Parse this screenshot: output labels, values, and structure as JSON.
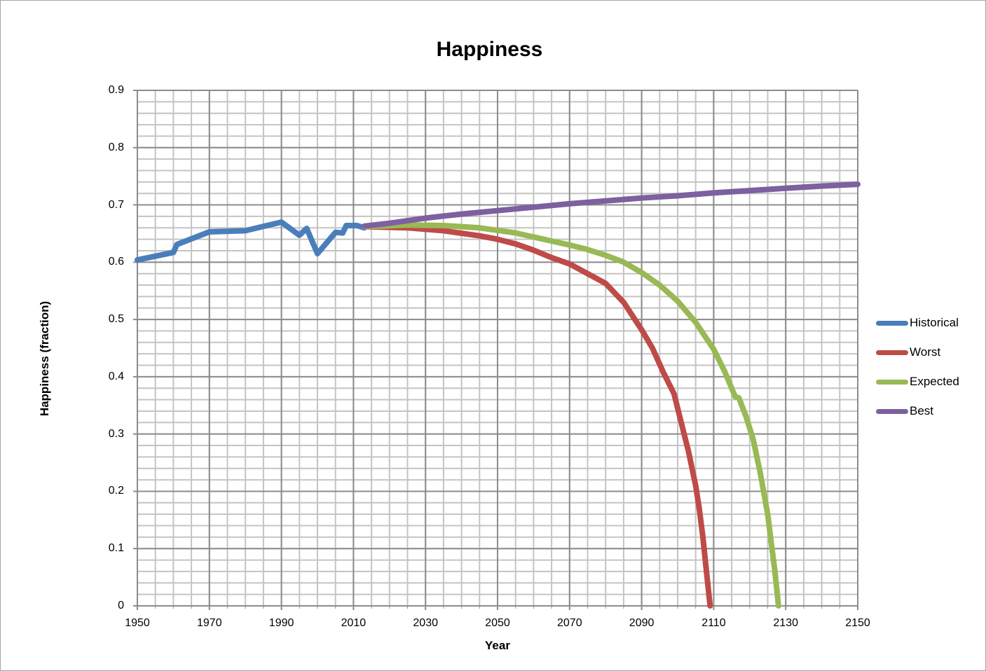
{
  "chart_data": {
    "type": "line",
    "title": "Happiness",
    "xlabel": "Year",
    "ylabel": "Happiness (fraction)",
    "xlim": [
      1950,
      2150
    ],
    "ylim": [
      0,
      0.9
    ],
    "x_ticks": [
      "1950",
      "1970",
      "1990",
      "2010",
      "2030",
      "2050",
      "2070",
      "2090",
      "2110",
      "2130",
      "2150"
    ],
    "y_ticks": [
      "0",
      "0.1",
      "0.2",
      "0.3",
      "0.4",
      "0.5",
      "0.6",
      "0.7",
      "0.8",
      "0.9"
    ],
    "grid": {
      "major_x_step": 20,
      "minor_x_step": 5,
      "major_y_step": 0.1,
      "minor_y_step": 0.02
    },
    "legend_position": "right",
    "series": [
      {
        "name": "Historical",
        "color": "#4a7ebb",
        "points": [
          [
            1950,
            0.604
          ],
          [
            1960,
            0.617
          ],
          [
            1961,
            0.631
          ],
          [
            1970,
            0.653
          ],
          [
            1980,
            0.655
          ],
          [
            1990,
            0.67
          ],
          [
            1995,
            0.647
          ],
          [
            1997,
            0.659
          ],
          [
            2000,
            0.615
          ],
          [
            2005,
            0.652
          ],
          [
            2007,
            0.651
          ],
          [
            2008,
            0.664
          ],
          [
            2011,
            0.664
          ],
          [
            2013,
            0.66
          ]
        ]
      },
      {
        "name": "Worst",
        "color": "#be4b48",
        "points": [
          [
            2013,
            0.662
          ],
          [
            2025,
            0.66
          ],
          [
            2035,
            0.655
          ],
          [
            2045,
            0.646
          ],
          [
            2050,
            0.64
          ],
          [
            2055,
            0.632
          ],
          [
            2060,
            0.621
          ],
          [
            2065,
            0.608
          ],
          [
            2070,
            0.597
          ],
          [
            2075,
            0.58
          ],
          [
            2080,
            0.563
          ],
          [
            2085,
            0.53
          ],
          [
            2090,
            0.482
          ],
          [
            2093,
            0.45
          ],
          [
            2096,
            0.408
          ],
          [
            2099,
            0.37
          ],
          [
            2101,
            0.32
          ],
          [
            2103,
            0.27
          ],
          [
            2105,
            0.21
          ],
          [
            2106,
            0.17
          ],
          [
            2107,
            0.12
          ],
          [
            2108,
            0.06
          ],
          [
            2109,
            0.0
          ]
        ]
      },
      {
        "name": "Expected",
        "color": "#98b954",
        "points": [
          [
            2013,
            0.662
          ],
          [
            2025,
            0.665
          ],
          [
            2035,
            0.664
          ],
          [
            2045,
            0.66
          ],
          [
            2055,
            0.651
          ],
          [
            2065,
            0.637
          ],
          [
            2070,
            0.63
          ],
          [
            2075,
            0.622
          ],
          [
            2080,
            0.612
          ],
          [
            2085,
            0.6
          ],
          [
            2090,
            0.582
          ],
          [
            2095,
            0.56
          ],
          [
            2100,
            0.532
          ],
          [
            2105,
            0.495
          ],
          [
            2110,
            0.448
          ],
          [
            2113,
            0.41
          ],
          [
            2116,
            0.365
          ],
          [
            2117,
            0.363
          ],
          [
            2119,
            0.33
          ],
          [
            2121,
            0.29
          ],
          [
            2123,
            0.23
          ],
          [
            2125,
            0.16
          ],
          [
            2126,
            0.11
          ],
          [
            2127,
            0.06
          ],
          [
            2128,
            0.0
          ]
        ]
      },
      {
        "name": "Best",
        "color": "#7d60a0",
        "points": [
          [
            2013,
            0.663
          ],
          [
            2020,
            0.668
          ],
          [
            2030,
            0.677
          ],
          [
            2040,
            0.684
          ],
          [
            2050,
            0.69
          ],
          [
            2060,
            0.696
          ],
          [
            2070,
            0.702
          ],
          [
            2080,
            0.707
          ],
          [
            2090,
            0.712
          ],
          [
            2100,
            0.716
          ],
          [
            2110,
            0.721
          ],
          [
            2120,
            0.725
          ],
          [
            2130,
            0.729
          ],
          [
            2140,
            0.733
          ],
          [
            2150,
            0.736
          ]
        ]
      }
    ]
  },
  "legend": {
    "items": [
      "Historical",
      "Worst",
      "Expected",
      "Best"
    ]
  }
}
